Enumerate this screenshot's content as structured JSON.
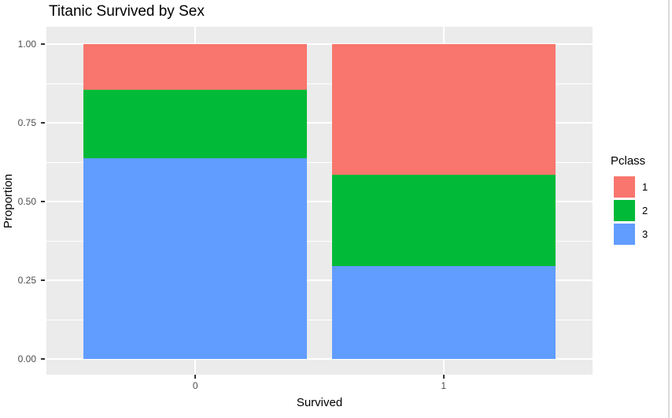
{
  "chart_data": {
    "type": "bar",
    "stacked": true,
    "normalized": true,
    "title": "Titanic Survived by Sex",
    "xlabel": "Survived",
    "ylabel": "Proportion",
    "categories": [
      "0",
      "1"
    ],
    "series": [
      {
        "name": "1",
        "color": "#F8766D",
        "values": [
          0.145,
          0.415
        ]
      },
      {
        "name": "2",
        "color": "#00BA38",
        "values": [
          0.2175,
          0.29
        ]
      },
      {
        "name": "3",
        "color": "#619CFF",
        "values": [
          0.6375,
          0.295
        ]
      }
    ],
    "stack_order_bottom_to_top": [
      "3",
      "2",
      "1"
    ],
    "legend_title": "Pclass",
    "legend_position": "right",
    "ylim": [
      0,
      1
    ],
    "y_major_ticks": [
      {
        "value": 0.0,
        "label": "0.00"
      },
      {
        "value": 0.25,
        "label": "0.25"
      },
      {
        "value": 0.5,
        "label": "0.50"
      },
      {
        "value": 0.75,
        "label": "0.75"
      },
      {
        "value": 1.0,
        "label": "1.00"
      }
    ],
    "y_minor_ticks": [
      0.125,
      0.375,
      0.625,
      0.875
    ],
    "grid": true,
    "bar_width_fraction": 0.9,
    "colors": {
      "panel_bg": "#EBEBEB",
      "grid": "#FFFFFF",
      "tick_mark": "#333333",
      "tick_label": "#4D4D4D",
      "text": "#000000"
    }
  }
}
